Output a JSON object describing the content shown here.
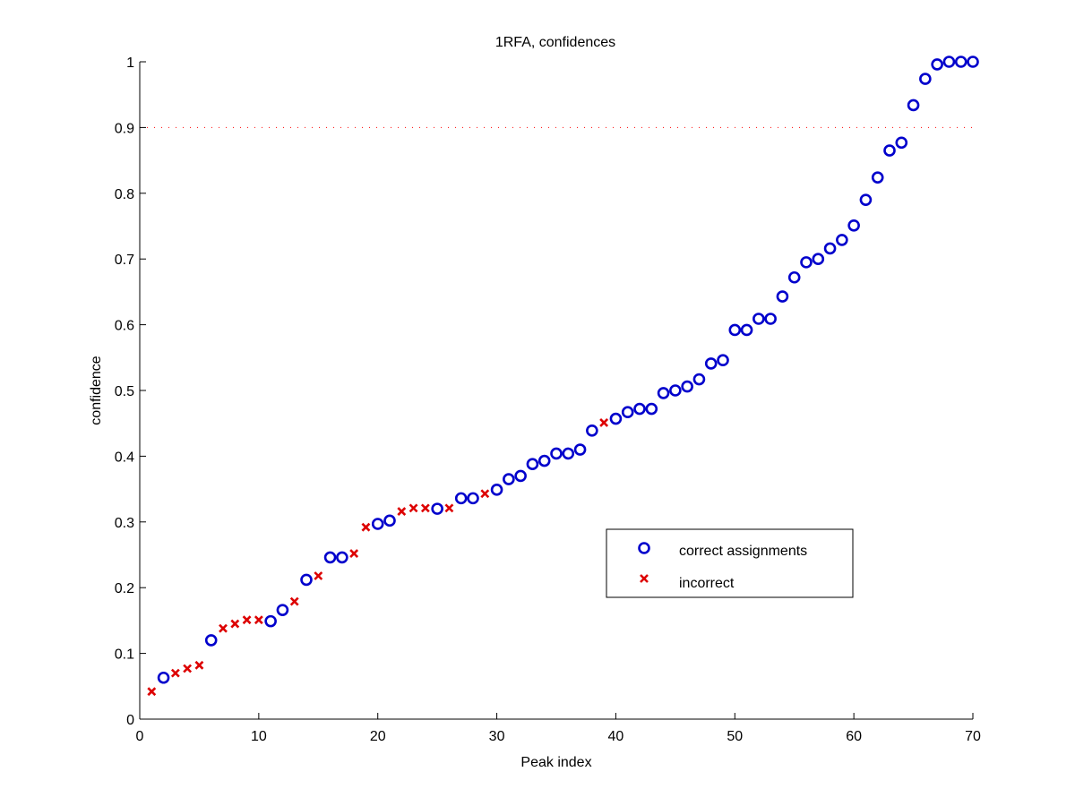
{
  "chart_data": {
    "type": "scatter",
    "title": "1RFA, confidences",
    "xlabel": "Peak index",
    "ylabel": "confidence",
    "xlim": [
      0,
      70
    ],
    "ylim": [
      0,
      1
    ],
    "xticks": [
      0,
      10,
      20,
      30,
      40,
      50,
      60,
      70
    ],
    "yticks": [
      0,
      0.1,
      0.2,
      0.3,
      0.4,
      0.5,
      0.6,
      0.7,
      0.8,
      0.9,
      1
    ],
    "ytick_labels": [
      "0",
      "0.1",
      "0.2",
      "0.3",
      "0.4",
      "0.5",
      "0.6",
      "0.7",
      "0.8",
      "0.9",
      "1"
    ],
    "grid": false,
    "threshold": {
      "y": 0.9,
      "style": "dotted",
      "color": "#ff0000"
    },
    "legend": {
      "position": "lower-right-inside"
    },
    "series": [
      {
        "name": "correct assignments",
        "marker": "circle",
        "color": "#0000cc",
        "x": [
          2,
          6,
          11,
          12,
          14,
          16,
          17,
          20,
          21,
          25,
          27,
          28,
          30,
          31,
          32,
          33,
          34,
          35,
          36,
          37,
          38,
          40,
          41,
          42,
          43,
          44,
          45,
          46,
          47,
          48,
          49,
          50,
          51,
          52,
          53,
          54,
          55,
          56,
          57,
          58,
          59,
          60,
          61,
          62,
          63,
          64,
          65,
          66,
          67,
          68,
          69,
          70
        ],
        "y": [
          0.063,
          0.12,
          0.149,
          0.166,
          0.212,
          0.246,
          0.246,
          0.297,
          0.302,
          0.32,
          0.336,
          0.336,
          0.349,
          0.365,
          0.37,
          0.388,
          0.393,
          0.404,
          0.404,
          0.41,
          0.439,
          0.457,
          0.467,
          0.472,
          0.472,
          0.496,
          0.5,
          0.506,
          0.517,
          0.541,
          0.546,
          0.592,
          0.592,
          0.609,
          0.609,
          0.643,
          0.672,
          0.695,
          0.7,
          0.716,
          0.729,
          0.751,
          0.79,
          0.824,
          0.865,
          0.877,
          0.934,
          0.974,
          0.996,
          1.0,
          1.0,
          1.0
        ]
      },
      {
        "name": "incorrect",
        "marker": "x",
        "color": "#dd0000",
        "x": [
          1,
          3,
          4,
          5,
          7,
          8,
          9,
          10,
          13,
          15,
          18,
          19,
          22,
          23,
          24,
          26,
          29,
          39
        ],
        "y": [
          0.042,
          0.07,
          0.077,
          0.082,
          0.138,
          0.145,
          0.151,
          0.151,
          0.179,
          0.218,
          0.252,
          0.292,
          0.316,
          0.321,
          0.321,
          0.321,
          0.343,
          0.451
        ]
      }
    ]
  }
}
